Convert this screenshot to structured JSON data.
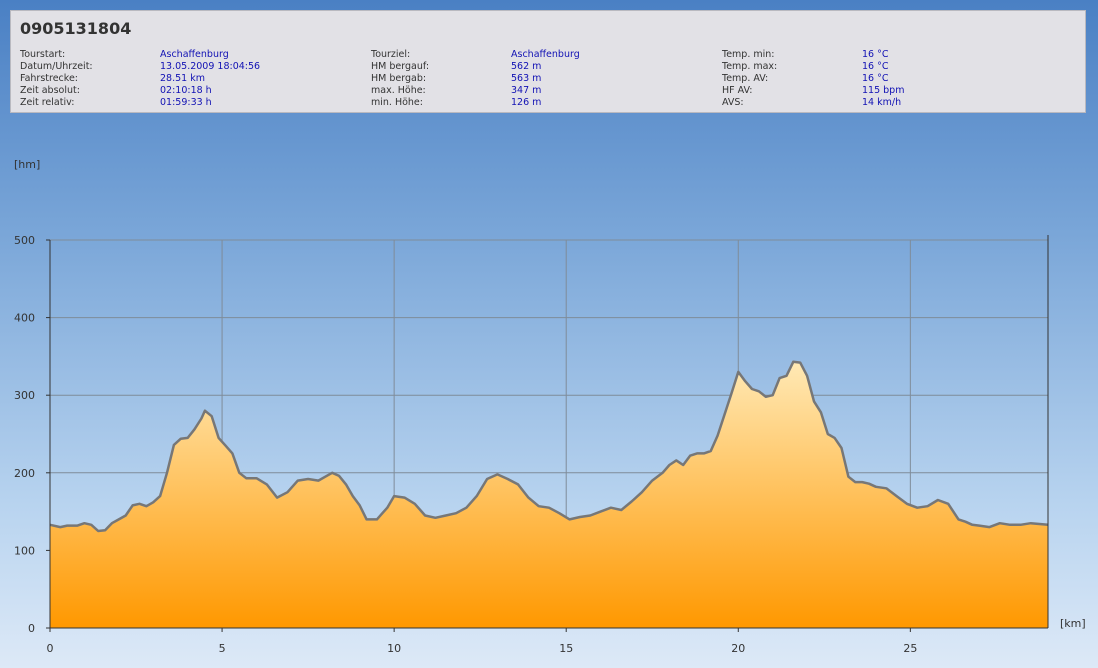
{
  "header": {
    "tour_id": "0905131804"
  },
  "info_columns": [
    [
      {
        "label": "Tourstart:",
        "value": "Aschaffenburg"
      },
      {
        "label": "Datum/Uhrzeit:",
        "value": "13.05.2009 18:04:56"
      },
      {
        "label": "Fahrstrecke:",
        "value": "28.51 km"
      },
      {
        "label": "Zeit absolut:",
        "value": "02:10:18 h"
      },
      {
        "label": "Zeit relativ:",
        "value": "01:59:33 h"
      }
    ],
    [
      {
        "label": "Tourziel:",
        "value": "Aschaffenburg"
      },
      {
        "label": "HM bergauf:",
        "value": "562 m"
      },
      {
        "label": "HM bergab:",
        "value": "563 m"
      },
      {
        "label": "max. Höhe:",
        "value": "347 m"
      },
      {
        "label": "min. Höhe:",
        "value": "126 m"
      }
    ],
    [
      {
        "label": "Temp. min:",
        "value": "16 °C"
      },
      {
        "label": "Temp. max:",
        "value": "16 °C"
      },
      {
        "label": "Temp. AV:",
        "value": "16 °C"
      },
      {
        "label": "HF AV:",
        "value": "115 bpm"
      },
      {
        "label": "AVS:",
        "value": "14 km/h"
      }
    ]
  ],
  "chart_data": {
    "type": "area",
    "xlabel": "[km]",
    "ylabel": "[hm]",
    "xlim": [
      0,
      29
    ],
    "ylim": [
      0,
      500
    ],
    "x_ticks": [
      0,
      5,
      10,
      15,
      20,
      25
    ],
    "y_ticks": [
      0,
      100,
      200,
      300,
      400,
      500
    ],
    "grid": true,
    "colors": {
      "fill_top": "#ffe9b5",
      "fill_bottom": "#ff9800",
      "line": "#777777",
      "grid": "#7f8c99"
    },
    "x": [
      0,
      0.3,
      0.5,
      0.8,
      1.0,
      1.2,
      1.4,
      1.6,
      1.8,
      2.0,
      2.2,
      2.4,
      2.6,
      2.8,
      3.0,
      3.2,
      3.4,
      3.6,
      3.8,
      4.0,
      4.2,
      4.4,
      4.5,
      4.7,
      4.9,
      5.1,
      5.3,
      5.5,
      5.7,
      6.0,
      6.3,
      6.6,
      6.9,
      7.2,
      7.5,
      7.8,
      8.0,
      8.2,
      8.4,
      8.6,
      8.8,
      9.0,
      9.2,
      9.5,
      9.8,
      10.0,
      10.3,
      10.6,
      10.9,
      11.2,
      11.5,
      11.8,
      12.1,
      12.4,
      12.7,
      13.0,
      13.3,
      13.6,
      13.9,
      14.2,
      14.5,
      14.8,
      15.1,
      15.4,
      15.7,
      16.0,
      16.3,
      16.6,
      16.9,
      17.2,
      17.5,
      17.8,
      18.0,
      18.2,
      18.4,
      18.6,
      18.8,
      19.0,
      19.2,
      19.4,
      19.6,
      19.8,
      20.0,
      20.2,
      20.4,
      20.6,
      20.8,
      21.0,
      21.2,
      21.4,
      21.6,
      21.8,
      22.0,
      22.2,
      22.4,
      22.6,
      22.8,
      23.0,
      23.2,
      23.4,
      23.6,
      23.8,
      24.0,
      24.3,
      24.6,
      24.9,
      25.2,
      25.5,
      25.8,
      26.1,
      26.4,
      26.6,
      26.8,
      27.0,
      27.3,
      27.6,
      27.9,
      28.2,
      28.5,
      29.0
    ],
    "y": [
      133,
      130,
      132,
      132,
      135,
      133,
      125,
      126,
      135,
      140,
      145,
      158,
      160,
      157,
      162,
      170,
      200,
      236,
      244,
      245,
      256,
      270,
      280,
      273,
      245,
      235,
      225,
      200,
      193,
      193,
      185,
      168,
      175,
      190,
      192,
      190,
      195,
      200,
      196,
      185,
      170,
      158,
      140,
      140,
      155,
      170,
      168,
      160,
      145,
      142,
      145,
      148,
      155,
      170,
      192,
      198,
      192,
      185,
      168,
      157,
      155,
      148,
      140,
      143,
      145,
      150,
      155,
      152,
      163,
      175,
      190,
      200,
      210,
      216,
      210,
      222,
      225,
      225,
      228,
      248,
      275,
      302,
      330,
      318,
      308,
      305,
      298,
      300,
      322,
      325,
      343,
      342,
      325,
      292,
      278,
      250,
      245,
      232,
      195,
      188,
      188,
      186,
      182,
      180,
      170,
      160,
      155,
      157,
      165,
      160,
      140,
      137,
      133,
      132,
      130,
      135,
      133,
      133,
      135,
      133
    ]
  }
}
